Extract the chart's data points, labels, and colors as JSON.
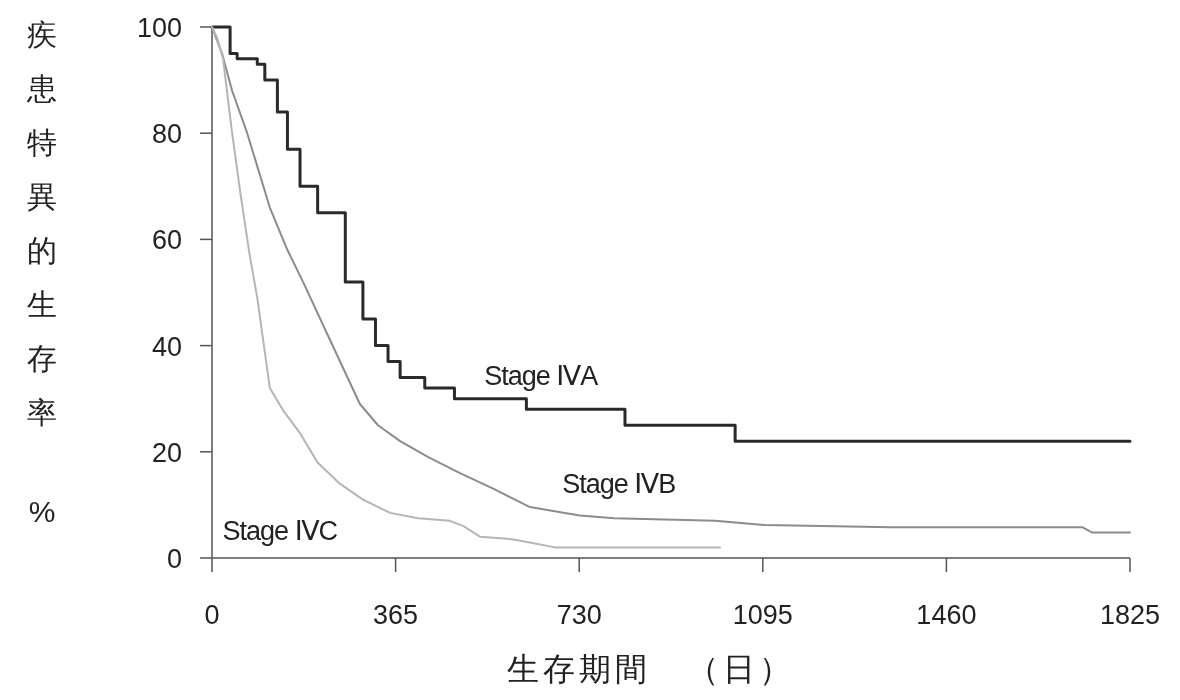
{
  "chart_data": {
    "type": "step",
    "xlabel": "生存期間　（日）",
    "ylabel": "疾患特異的生存率 %",
    "xlim": [
      0,
      1825
    ],
    "xticks": [
      0,
      365,
      730,
      1095,
      1460,
      1825
    ],
    "ylim": [
      0,
      100
    ],
    "yticks": [
      0,
      20,
      40,
      60,
      80,
      100
    ],
    "grid": false,
    "series": [
      {
        "name": "Stage ⅣA",
        "color": "#2a2a2a",
        "x": [
          0,
          32,
          36,
          50,
          90,
          105,
          130,
          150,
          175,
          210,
          265,
          300,
          325,
          350,
          374,
          423,
          482,
          610,
          625,
          640,
          821,
          1040,
          1825
        ],
        "values": [
          100,
          100,
          95,
          94,
          93,
          90,
          84,
          77,
          70,
          65,
          52,
          45,
          40,
          37,
          34,
          32,
          30,
          30,
          28,
          28,
          25,
          22,
          22
        ]
      },
      {
        "name": "Stage ⅣB",
        "type": "line",
        "color": "#8c8c8c",
        "x": [
          0,
          20,
          40,
          70,
          115,
          150,
          181,
          230,
          294,
          330,
          374,
          430,
          493,
          560,
          632,
          731,
          800,
          1000,
          1100,
          1350,
          1730,
          1750,
          1825
        ],
        "values": [
          100,
          95,
          88,
          80,
          66,
          58,
          52,
          42,
          29,
          25,
          22,
          19,
          16,
          13,
          9.6,
          8,
          7.5,
          7,
          6.2,
          5.8,
          5.8,
          4.8,
          4.8
        ]
      },
      {
        "name": "Stage ⅣC",
        "type": "line",
        "color": "#b5b5b5",
        "x": [
          0,
          10,
          22,
          40,
          56,
          75,
          90,
          115,
          140,
          175,
          210,
          254,
          300,
          354,
          410,
          473,
          500,
          533,
          600,
          682,
          1010
        ],
        "values": [
          100,
          98,
          94,
          80,
          69,
          57,
          49,
          32,
          28,
          23.5,
          18,
          14,
          11,
          8.5,
          7.5,
          7,
          6,
          4,
          3.5,
          2,
          2
        ]
      }
    ]
  }
}
